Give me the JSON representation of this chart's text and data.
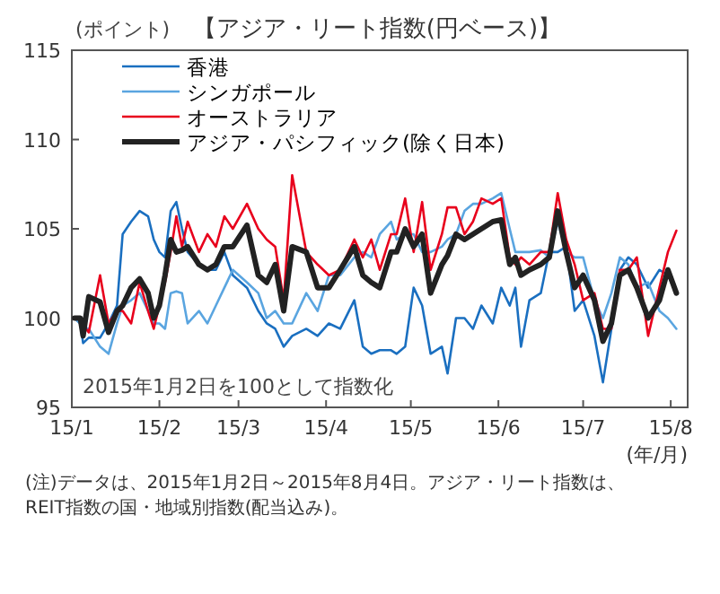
{
  "chart_data": {
    "type": "line",
    "title": "【アジア・リート指数(円ベース)】",
    "ylabel": "(ポイント)",
    "xlabel": "(年/月)",
    "annotations": [
      "2015年1月2日を100として指数化",
      "(注)データは、2015年1月2日～2015年8月4日。アジア・リート指数は、",
      "REIT指数の国・地域別指数(配当込み)。"
    ],
    "x": [
      "2015-01-02",
      "2015-01-04",
      "2015-01-05",
      "2015-01-07",
      "2015-01-11",
      "2015-01-14",
      "2015-01-17",
      "2015-01-19",
      "2015-01-22",
      "2015-01-25",
      "2015-01-28",
      "2015-01-30",
      "2015-02-01",
      "2015-02-03",
      "2015-02-05",
      "2015-02-07",
      "2015-02-09",
      "2015-02-11",
      "2015-02-15",
      "2015-02-18",
      "2015-02-21",
      "2015-02-24",
      "2015-02-27",
      "2015-03-04",
      "2015-03-08",
      "2015-03-11",
      "2015-03-14",
      "2015-03-17",
      "2015-03-20",
      "2015-03-25",
      "2015-03-29",
      "2015-04-02",
      "2015-04-06",
      "2015-04-11",
      "2015-04-14",
      "2015-04-17",
      "2015-04-20",
      "2015-04-24",
      "2015-04-26",
      "2015-04-29",
      "2015-05-02",
      "2015-05-05",
      "2015-05-08",
      "2015-05-12",
      "2015-05-14",
      "2015-05-17",
      "2015-05-20",
      "2015-05-23",
      "2015-05-26",
      "2015-05-30",
      "2015-06-02",
      "2015-06-05",
      "2015-06-07",
      "2015-06-09",
      "2015-06-12",
      "2015-06-16",
      "2015-06-19",
      "2015-06-22",
      "2015-06-25",
      "2015-06-28",
      "2015-07-01",
      "2015-07-05",
      "2015-07-08",
      "2015-07-11",
      "2015-07-14",
      "2015-07-17",
      "2015-07-20",
      "2015-07-24",
      "2015-07-28",
      "2015-07-31",
      "2015-08-03"
    ],
    "series": [
      {
        "name": "香港",
        "color": "#1a6fc0",
        "values": [
          100,
          99.7,
          98.6,
          98.9,
          98.9,
          99.7,
          100.7,
          104.7,
          105.4,
          106.0,
          105.7,
          104.4,
          103.7,
          103.4,
          106.0,
          106.5,
          105.0,
          103.7,
          103.0,
          102.7,
          102.7,
          103.7,
          102.4,
          101.7,
          100.4,
          99.7,
          99.4,
          98.4,
          99.0,
          99.4,
          99.0,
          99.7,
          99.4,
          101.0,
          98.4,
          98.0,
          98.2,
          98.2,
          98.0,
          98.4,
          101.7,
          100.7,
          98.0,
          98.4,
          96.9,
          100.0,
          100.0,
          99.4,
          100.7,
          99.7,
          101.7,
          100.7,
          101.7,
          98.4,
          101.0,
          101.4,
          103.7,
          103.7,
          104.0,
          100.4,
          101.0,
          99.0,
          96.4,
          99.4,
          102.7,
          103.4,
          103.0,
          101.7,
          102.7,
          102.4,
          101.4
        ]
      },
      {
        "name": "シンガポール",
        "color": "#5aa5e0",
        "values": [
          100,
          99.7,
          99.5,
          99.4,
          98.4,
          98.0,
          99.7,
          100.7,
          101.0,
          101.4,
          100.4,
          99.7,
          99.7,
          99.4,
          101.4,
          101.5,
          101.4,
          99.7,
          100.4,
          99.7,
          100.7,
          101.7,
          102.7,
          102.0,
          101.4,
          100.0,
          100.4,
          99.7,
          99.7,
          101.4,
          100.4,
          102.4,
          102.4,
          103.4,
          103.7,
          103.4,
          104.7,
          105.4,
          104.4,
          104.7,
          104.7,
          103.7,
          103.7,
          104.0,
          104.4,
          104.7,
          106.0,
          106.4,
          106.4,
          106.7,
          107.0,
          105.0,
          103.7,
          103.7,
          103.7,
          103.8,
          103.4,
          105.4,
          103.7,
          103.4,
          103.4,
          101.0,
          100.0,
          101.4,
          103.4,
          103.0,
          101.7,
          102.0,
          100.4,
          100.0,
          99.4
        ]
      },
      {
        "name": "オーストラリア",
        "color": "#e8001c",
        "values": [
          100,
          100,
          99.6,
          99.2,
          102.4,
          99.7,
          100.4,
          100.4,
          99.7,
          102.0,
          100.4,
          99.4,
          100.7,
          102.0,
          103.7,
          105.7,
          104.0,
          105.4,
          103.7,
          104.7,
          104.0,
          105.7,
          105.0,
          106.4,
          105.0,
          104.4,
          104.0,
          101.0,
          108.0,
          103.7,
          103.0,
          102.4,
          102.7,
          104.4,
          103.4,
          104.4,
          102.7,
          104.7,
          104.7,
          106.7,
          103.7,
          106.5,
          102.7,
          104.7,
          106.2,
          106.2,
          104.7,
          105.4,
          106.7,
          106.4,
          106.7,
          103.4,
          103.0,
          103.4,
          103.0,
          103.7,
          103.7,
          107.0,
          104.4,
          103.0,
          101.0,
          101.4,
          99.4,
          99.4,
          102.7,
          102.7,
          103.4,
          99.0,
          101.7,
          103.7,
          104.9
        ]
      },
      {
        "name": "アジア・パシフィック(除く日本)",
        "color": "#222222",
        "values": [
          100,
          100,
          99.0,
          101.2,
          100.9,
          99.2,
          100.4,
          100.7,
          101.7,
          102.2,
          101.4,
          100.0,
          100.7,
          102.4,
          104.4,
          103.7,
          103.8,
          104.0,
          103.0,
          102.7,
          103.0,
          104.0,
          104.0,
          105.2,
          102.4,
          102.0,
          103.0,
          100.4,
          104.0,
          103.7,
          101.7,
          101.7,
          102.7,
          104.0,
          102.4,
          102.0,
          101.7,
          103.7,
          103.7,
          105.0,
          104.0,
          104.7,
          101.4,
          103.0,
          103.5,
          104.7,
          104.4,
          104.7,
          105.0,
          105.4,
          105.5,
          103.0,
          103.4,
          102.4,
          102.7,
          103.0,
          103.4,
          106.0,
          103.7,
          101.7,
          102.4,
          101.0,
          98.7,
          99.7,
          102.4,
          102.7,
          101.7,
          100.0,
          101.0,
          102.7,
          101.4
        ]
      }
    ],
    "xlim": [
      "2015-01-01",
      "2015-08-07"
    ],
    "xticks": [
      {
        "value": "2015-01-01",
        "label": "15/1"
      },
      {
        "value": "2015-02-01",
        "label": "15/2"
      },
      {
        "value": "2015-03-01",
        "label": "15/3"
      },
      {
        "value": "2015-04-01",
        "label": "15/4"
      },
      {
        "value": "2015-05-01",
        "label": "15/5"
      },
      {
        "value": "2015-06-01",
        "label": "15/6"
      },
      {
        "value": "2015-07-01",
        "label": "15/7"
      },
      {
        "value": "2015-08-01",
        "label": "15/8"
      }
    ],
    "ylim": [
      95,
      115
    ],
    "yticks": [
      95,
      100,
      105,
      110,
      115
    ],
    "grid": false,
    "legend": "top left",
    "line_style": "solid",
    "marker": "none"
  }
}
